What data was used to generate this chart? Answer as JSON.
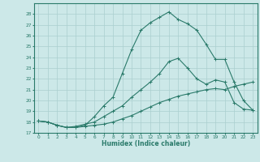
{
  "xlabel": "Humidex (Indice chaleur)",
  "ylabel": "",
  "background_color": "#cce8e8",
  "grid_color": "#aacfcf",
  "line_color": "#2a7a6a",
  "xlim": [
    -0.5,
    23.5
  ],
  "ylim": [
    17,
    29
  ],
  "yticks": [
    17,
    18,
    19,
    20,
    21,
    22,
    23,
    24,
    25,
    26,
    27,
    28
  ],
  "xticks": [
    0,
    1,
    2,
    3,
    4,
    5,
    6,
    7,
    8,
    9,
    10,
    11,
    12,
    13,
    14,
    15,
    16,
    17,
    18,
    19,
    20,
    21,
    22,
    23
  ],
  "line1_x": [
    0,
    1,
    2,
    3,
    4,
    5,
    6,
    7,
    8,
    9,
    10,
    11,
    12,
    13,
    14,
    15,
    16,
    17,
    18,
    19,
    20,
    21,
    22,
    23
  ],
  "line1_y": [
    18.1,
    18.0,
    17.7,
    17.5,
    17.5,
    17.6,
    17.7,
    17.8,
    18.0,
    18.3,
    18.6,
    19.0,
    19.4,
    19.8,
    20.1,
    20.4,
    20.6,
    20.8,
    21.0,
    21.1,
    21.0,
    21.3,
    21.5,
    21.7
  ],
  "line2_x": [
    0,
    1,
    2,
    3,
    4,
    5,
    6,
    7,
    8,
    9,
    10,
    11,
    12,
    13,
    14,
    15,
    16,
    17,
    18,
    19,
    20,
    21,
    22,
    23
  ],
  "line2_y": [
    18.1,
    18.0,
    17.7,
    17.5,
    17.6,
    17.8,
    18.0,
    18.5,
    19.0,
    19.5,
    20.3,
    21.0,
    21.7,
    22.5,
    23.6,
    23.9,
    23.0,
    22.0,
    21.5,
    21.9,
    21.7,
    19.8,
    19.2,
    19.1
  ],
  "line3_x": [
    0,
    1,
    2,
    3,
    4,
    5,
    6,
    7,
    8,
    9,
    10,
    11,
    12,
    13,
    14,
    15,
    16,
    17,
    18,
    19,
    20,
    21,
    22,
    23
  ],
  "line3_y": [
    18.1,
    18.0,
    17.7,
    17.5,
    17.5,
    17.7,
    18.5,
    19.5,
    20.3,
    22.5,
    24.7,
    26.5,
    27.2,
    27.7,
    28.2,
    27.5,
    27.1,
    26.5,
    25.2,
    23.8,
    23.8,
    21.7,
    20.0,
    19.1
  ],
  "marker": "+"
}
